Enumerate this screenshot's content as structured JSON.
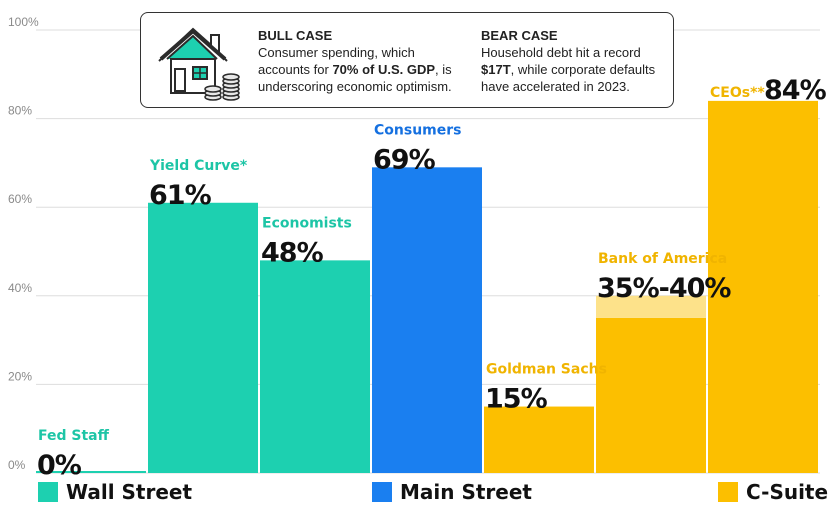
{
  "chart_data": {
    "type": "bar",
    "title": "",
    "xlabel": "",
    "ylabel": "",
    "ylim": [
      0,
      100
    ],
    "yticks": [
      {
        "value": 0,
        "label": "0%"
      },
      {
        "value": 20,
        "label": "20%"
      },
      {
        "value": 40,
        "label": "40%"
      },
      {
        "value": 60,
        "label": "60%"
      },
      {
        "value": 80,
        "label": "80%"
      },
      {
        "value": 100,
        "label": "100%"
      }
    ],
    "grid": true,
    "legend_position": "bottom",
    "bars": [
      {
        "name": "Fed Staff",
        "value": 0,
        "label": "0%",
        "group": "Wall Street"
      },
      {
        "name": "Yield Curve*",
        "value": 61,
        "label": "61%",
        "group": "Wall Street"
      },
      {
        "name": "Economists",
        "value": 48,
        "label": "48%",
        "group": "Wall Street"
      },
      {
        "name": "Consumers",
        "value": 69,
        "label": "69%",
        "group": "Main Street"
      },
      {
        "name": "Goldman Sachs",
        "value": 15,
        "label": "15%",
        "group": "C-Suite"
      },
      {
        "name": "Bank of America",
        "value": 35,
        "value_high": 40,
        "label": "35%-40%",
        "group": "C-Suite"
      },
      {
        "name": "CEOs**",
        "value": 84,
        "label": "84%",
        "group": "C-Suite"
      }
    ],
    "legend": [
      {
        "name": "Wall Street",
        "color": "#1dd0b0"
      },
      {
        "name": "Main Street",
        "color": "#1a7ff0"
      },
      {
        "name": "C-Suite",
        "color": "#fcbf00"
      }
    ]
  },
  "info_box": {
    "bull_title": "BULL CASE",
    "bull_pre": "Consumer spending, which accounts for ",
    "bull_bold": "70% of U.S. GDP",
    "bull_post": ", is underscoring economic optimism.",
    "bear_title": "BEAR CASE",
    "bear_pre": "Household debt hit a record ",
    "bear_bold": "$17T",
    "bear_post": ", while corporate defaults have accelerated in 2023.",
    "icon": "house-with-coins-icon"
  },
  "colors": {
    "wall_street": "#1dd0b0",
    "wall_street_label": "#1dc5a6",
    "main_street": "#1a7ff0",
    "main_street_label": "#1570e0",
    "c_suite": "#fcbf00",
    "c_suite_label": "#f0b400",
    "c_suite_range": "#fde28a",
    "gridline": "#dddddd"
  }
}
